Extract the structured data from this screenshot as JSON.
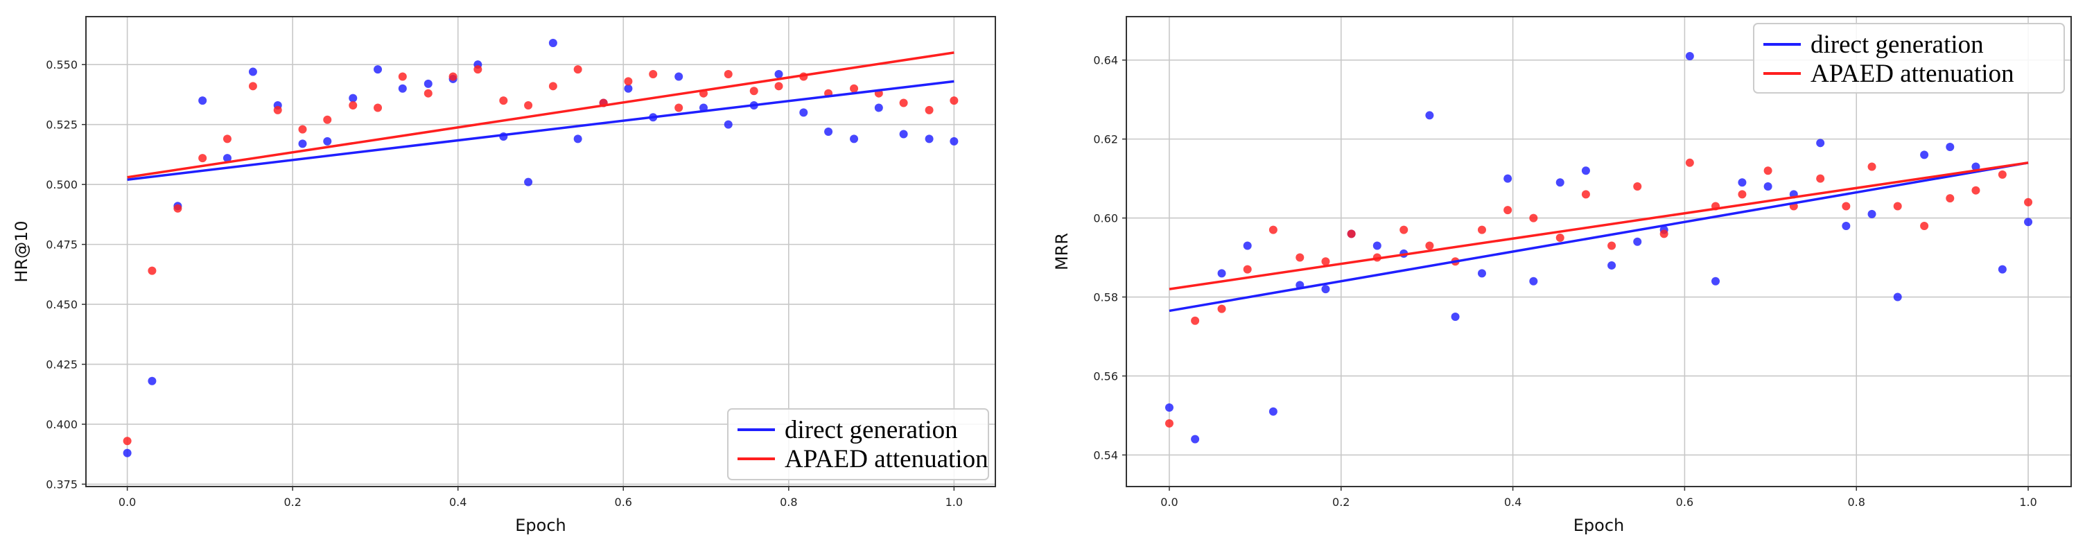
{
  "chart_data": [
    {
      "type": "scatter",
      "title": "",
      "xlabel": "Epoch",
      "ylabel": "HR@10",
      "xlim": [
        -0.05,
        1.05
      ],
      "ylim": [
        0.374,
        0.57
      ],
      "xticks": [
        "0.0",
        "0.2",
        "0.4",
        "0.6",
        "0.8",
        "1.0"
      ],
      "yticks": [
        "0.375",
        "0.400",
        "0.425",
        "0.450",
        "0.475",
        "0.500",
        "0.525",
        "0.550"
      ],
      "grid": true,
      "legend_position": "bottom-right",
      "series": [
        {
          "name": "direct generation",
          "color": "#1f1fff",
          "x": [
            0.0,
            0.03,
            0.061,
            0.091,
            0.121,
            0.152,
            0.182,
            0.212,
            0.242,
            0.273,
            0.303,
            0.333,
            0.364,
            0.394,
            0.424,
            0.455,
            0.485,
            0.515,
            0.545,
            0.576,
            0.606,
            0.636,
            0.667,
            0.697,
            0.727,
            0.758,
            0.788,
            0.818,
            0.848,
            0.879,
            0.909,
            0.939,
            0.97,
            1.0
          ],
          "y": [
            0.388,
            0.418,
            0.491,
            0.535,
            0.511,
            0.547,
            0.533,
            0.517,
            0.518,
            0.536,
            0.548,
            0.54,
            0.542,
            0.544,
            0.55,
            0.52,
            0.501,
            0.559,
            0.519,
            0.534,
            0.54,
            0.528,
            0.545,
            0.532,
            0.525,
            0.533,
            0.546,
            0.53,
            0.522,
            0.519,
            0.532,
            0.521,
            0.519,
            0.518
          ],
          "fit": [
            0.502,
            0.543
          ]
        },
        {
          "name": "APAED attenuation",
          "color": "#ff1f1f",
          "x": [
            0.0,
            0.03,
            0.061,
            0.091,
            0.121,
            0.152,
            0.182,
            0.212,
            0.242,
            0.273,
            0.303,
            0.333,
            0.364,
            0.394,
            0.424,
            0.455,
            0.485,
            0.515,
            0.545,
            0.576,
            0.606,
            0.636,
            0.667,
            0.697,
            0.727,
            0.758,
            0.788,
            0.818,
            0.848,
            0.879,
            0.909,
            0.939,
            0.97,
            1.0
          ],
          "y": [
            0.393,
            0.464,
            0.49,
            0.511,
            0.519,
            0.541,
            0.531,
            0.523,
            0.527,
            0.533,
            0.532,
            0.545,
            0.538,
            0.545,
            0.548,
            0.535,
            0.533,
            0.541,
            0.548,
            0.534,
            0.543,
            0.546,
            0.532,
            0.538,
            0.546,
            0.539,
            0.541,
            0.545,
            0.538,
            0.54,
            0.538,
            0.534,
            0.531,
            0.535
          ],
          "fit": [
            0.503,
            0.555
          ]
        }
      ]
    },
    {
      "type": "scatter",
      "title": "",
      "xlabel": "Epoch",
      "ylabel": "MRR",
      "xlim": [
        -0.05,
        1.05
      ],
      "ylim": [
        0.532,
        0.651
      ],
      "xticks": [
        "0.0",
        "0.2",
        "0.4",
        "0.6",
        "0.8",
        "1.0"
      ],
      "yticks": [
        "0.54",
        "0.56",
        "0.58",
        "0.60",
        "0.62",
        "0.64"
      ],
      "grid": true,
      "legend_position": "top-right",
      "series": [
        {
          "name": "direct generation",
          "color": "#1f1fff",
          "x": [
            0.0,
            0.03,
            0.061,
            0.091,
            0.121,
            0.152,
            0.182,
            0.212,
            0.242,
            0.273,
            0.303,
            0.333,
            0.364,
            0.394,
            0.424,
            0.455,
            0.485,
            0.515,
            0.545,
            0.576,
            0.606,
            0.636,
            0.667,
            0.697,
            0.727,
            0.758,
            0.788,
            0.818,
            0.848,
            0.879,
            0.909,
            0.939,
            0.97,
            1.0
          ],
          "y": [
            0.552,
            0.544,
            0.586,
            0.593,
            0.551,
            0.583,
            0.582,
            0.596,
            0.593,
            0.591,
            0.626,
            0.575,
            0.586,
            0.61,
            0.584,
            0.609,
            0.612,
            0.588,
            0.594,
            0.597,
            0.641,
            0.584,
            0.609,
            0.608,
            0.606,
            0.619,
            0.598,
            0.601,
            0.58,
            0.616,
            0.618,
            0.613,
            0.587,
            0.599
          ],
          "fit": [
            0.5765,
            0.614
          ]
        },
        {
          "name": "APAED attenuation",
          "color": "#ff1f1f",
          "x": [
            0.0,
            0.03,
            0.061,
            0.091,
            0.121,
            0.152,
            0.182,
            0.212,
            0.242,
            0.273,
            0.303,
            0.333,
            0.364,
            0.394,
            0.424,
            0.455,
            0.485,
            0.515,
            0.545,
            0.576,
            0.606,
            0.636,
            0.667,
            0.697,
            0.727,
            0.758,
            0.788,
            0.818,
            0.848,
            0.879,
            0.909,
            0.939,
            0.97,
            1.0
          ],
          "y": [
            0.548,
            0.574,
            0.577,
            0.587,
            0.597,
            0.59,
            0.589,
            0.596,
            0.59,
            0.597,
            0.593,
            0.589,
            0.597,
            0.602,
            0.6,
            0.595,
            0.606,
            0.593,
            0.608,
            0.596,
            0.614,
            0.603,
            0.606,
            0.612,
            0.603,
            0.61,
            0.603,
            0.613,
            0.603,
            0.598,
            0.605,
            0.607,
            0.611,
            0.604
          ],
          "fit": [
            0.582,
            0.614
          ]
        }
      ]
    }
  ]
}
